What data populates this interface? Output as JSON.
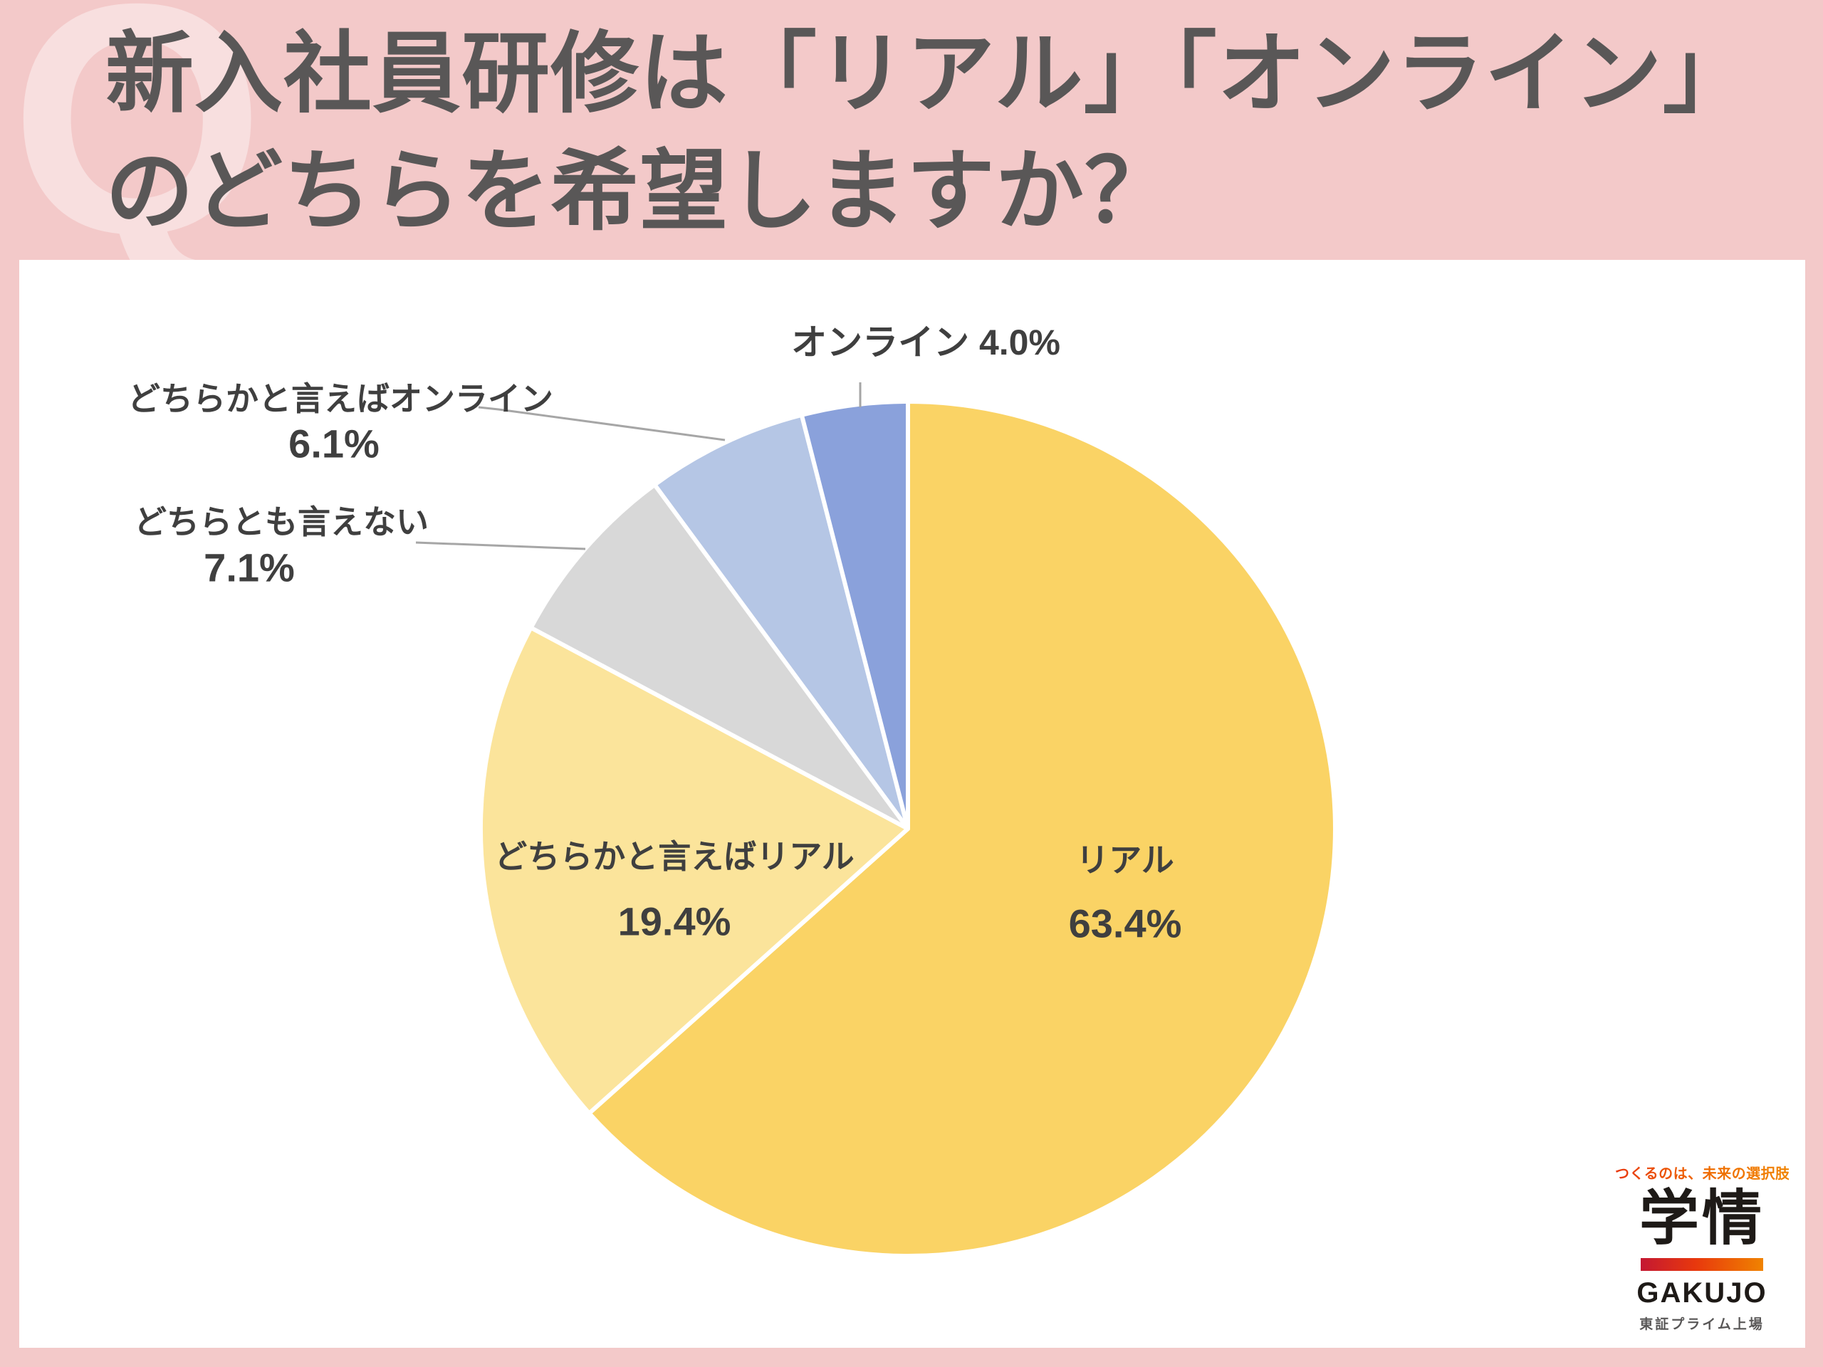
{
  "header": {
    "watermark": "Q",
    "title_line1": "新入社員研修は「リアル」「オンライン」",
    "title_line2": "のどちらを希望しますか？"
  },
  "chart_data": {
    "type": "pie",
    "title": "新入社員研修は「リアル」「オンライン」のどちらを希望しますか？",
    "unit": "%",
    "start_position": "12-oclock",
    "direction": "clockwise",
    "legend": "none",
    "slices": [
      {
        "label": "リアル",
        "value": 63.4,
        "color": "#FAD365",
        "label_placement": "inside"
      },
      {
        "label": "どちらかと言えばリアル",
        "value": 19.4,
        "color": "#FBE49B",
        "label_placement": "inside"
      },
      {
        "label": "どちらとも言えない",
        "value": 7.1,
        "color": "#D8D8D8",
        "label_placement": "outside"
      },
      {
        "label": "どちらかと言えばオンライン",
        "value": 6.1,
        "color": "#B5C6E5",
        "label_placement": "outside"
      },
      {
        "label": "オンライン",
        "value": 4.0,
        "color": "#8AA1DB",
        "label_placement": "outside"
      }
    ]
  },
  "logo": {
    "tagline": "つくるのは、未来の選択肢",
    "kanji": "学情",
    "name": "GAKUJO",
    "listing": "東証プライム上場"
  },
  "colors": {
    "background_pink": "#F3C9C9",
    "watermark_pink": "#F8DFDF",
    "title_gray": "#595757",
    "panel_white": "#FFFFFF",
    "label_gray": "#3F3F3F",
    "leader_line_gray": "#A6A6A6"
  }
}
